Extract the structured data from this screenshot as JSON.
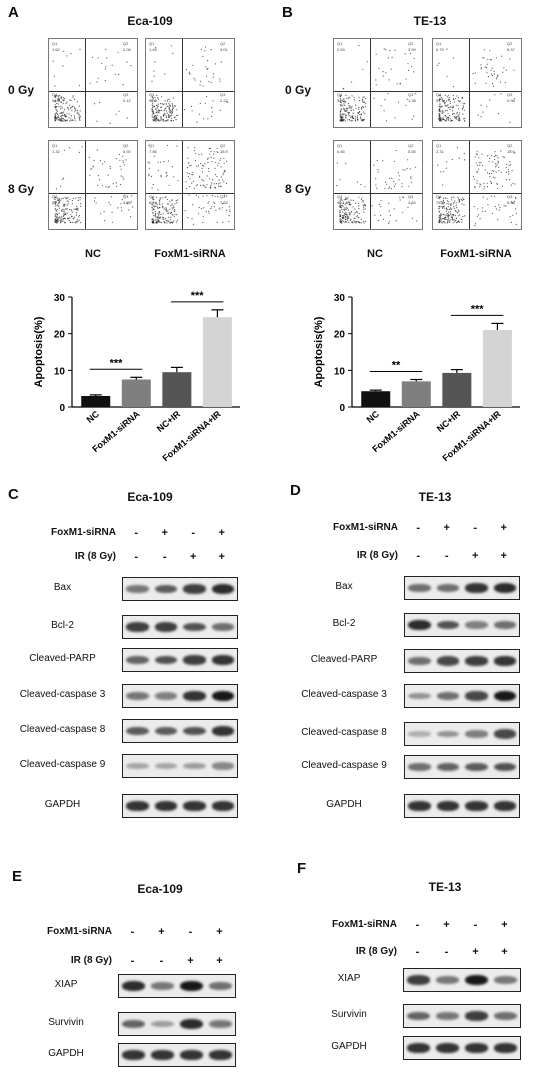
{
  "panels": [
    {
      "id": "A",
      "letter": "A",
      "title": "Eca-109",
      "row_labels": [
        "0 Gy",
        "8 Gy"
      ],
      "col_labels": [
        "NC",
        "FoxM1-siRNA"
      ],
      "flow": [
        {
          "q1": "1.62",
          "q2": "2.06",
          "q3": "0.12",
          "q4": "96.8"
        },
        {
          "q1": "1.48",
          "q2": "4.01",
          "q3": "2.22",
          "q4": "92.9"
        },
        {
          "q1": "1.32",
          "q2": "5.92",
          "q3": "3.55",
          "q4": "89.1"
        },
        {
          "q1": "7.86",
          "q2": "18.9",
          "q3": "7.63",
          "q4": "65.6"
        }
      ]
    },
    {
      "id": "B",
      "letter": "B",
      "title": "TE-13",
      "row_labels": [
        "0 Gy",
        "8 Gy"
      ],
      "col_labels": [
        "NC",
        "FoxM1-siRNA"
      ],
      "flow": [
        {
          "q1": "0.59",
          "q2": "3.59",
          "q3": "1.38",
          "q4": "94.3"
        },
        {
          "q1": "0.79",
          "q2": "6.37",
          "q3": "0.96",
          "q4": "91.9"
        },
        {
          "q1": "0.85",
          "q2": "5.55",
          "q3": "3.54",
          "q4": "90.1"
        },
        {
          "q1": "2.31",
          "q2": "15.6",
          "q3": "5.86",
          "q4": "76.2"
        }
      ]
    },
    {
      "id": "C",
      "letter": "C",
      "title": "Eca-109"
    },
    {
      "id": "D",
      "letter": "D",
      "title": "TE-13"
    },
    {
      "id": "E",
      "letter": "E",
      "title": "Eca-109"
    },
    {
      "id": "F",
      "letter": "F",
      "title": "TE-13"
    }
  ],
  "chart_data": [
    {
      "type": "bar",
      "categories": [
        "NC",
        "FoxM1-siRNA",
        "NC+IR",
        "FoxM1-siRNA+IR"
      ],
      "values": [
        3,
        7.5,
        9.5,
        24.5
      ],
      "errors": [
        0.3,
        0.6,
        1.3,
        2.0
      ],
      "colors": [
        "#111111",
        "#7f7f7f",
        "#555555",
        "#d4d4d4"
      ],
      "ylabel": "Apoptosis(%)",
      "ylim": [
        0,
        30
      ],
      "yticks": [
        0,
        10,
        20,
        30
      ],
      "significance": [
        {
          "from": 0,
          "to": 1,
          "label": "***"
        },
        {
          "from": 2,
          "to": 3,
          "label": "***"
        }
      ]
    },
    {
      "type": "bar",
      "categories": [
        "NC",
        "FoxM1-siRNA",
        "NC+IR",
        "FoxM1-siRNA+IR"
      ],
      "values": [
        4.3,
        7.0,
        9.3,
        21.0
      ],
      "errors": [
        0.3,
        0.5,
        0.9,
        1.8
      ],
      "colors": [
        "#111111",
        "#7f7f7f",
        "#555555",
        "#d4d4d4"
      ],
      "ylabel": "Apoptosis(%)",
      "ylim": [
        0,
        30
      ],
      "yticks": [
        0,
        10,
        20,
        30
      ],
      "significance": [
        {
          "from": 0,
          "to": 1,
          "label": "**"
        },
        {
          "from": 2,
          "to": 3,
          "label": "***"
        }
      ]
    }
  ],
  "western": {
    "headers": {
      "sirna": "FoxM1-siRNA",
      "ir": "IR (8 Gy)"
    },
    "sirna_signs": [
      "-",
      "+",
      "-",
      "+"
    ],
    "ir_signs": [
      "-",
      "-",
      "+",
      "+"
    ],
    "CD_proteins": [
      "Bax",
      "Bcl-2",
      "Cleaved-PARP",
      "Cleaved-caspase 3",
      "Cleaved-caspase 8",
      "Cleaved-caspase 9",
      "GAPDH"
    ],
    "EF_proteins": [
      "XIAP",
      "Survivin",
      "GAPDH"
    ],
    "C_intensity": [
      [
        0.45,
        0.6,
        0.75,
        0.85
      ],
      [
        0.75,
        0.75,
        0.65,
        0.5
      ],
      [
        0.55,
        0.65,
        0.75,
        0.8
      ],
      [
        0.45,
        0.4,
        0.8,
        0.95
      ],
      [
        0.6,
        0.6,
        0.65,
        0.8
      ],
      [
        0.2,
        0.2,
        0.25,
        0.35
      ],
      [
        0.8,
        0.8,
        0.8,
        0.8
      ]
    ],
    "D_intensity": [
      [
        0.5,
        0.5,
        0.8,
        0.85
      ],
      [
        0.85,
        0.65,
        0.4,
        0.5
      ],
      [
        0.5,
        0.7,
        0.75,
        0.8
      ],
      [
        0.3,
        0.5,
        0.7,
        0.95
      ],
      [
        0.15,
        0.3,
        0.4,
        0.7
      ],
      [
        0.5,
        0.55,
        0.6,
        0.65
      ],
      [
        0.8,
        0.8,
        0.8,
        0.8
      ]
    ],
    "E_intensity": [
      [
        0.85,
        0.45,
        0.95,
        0.5
      ],
      [
        0.55,
        0.25,
        0.85,
        0.45
      ],
      [
        0.8,
        0.8,
        0.8,
        0.8
      ]
    ],
    "F_intensity": [
      [
        0.75,
        0.45,
        0.95,
        0.45
      ],
      [
        0.55,
        0.45,
        0.75,
        0.5
      ],
      [
        0.8,
        0.8,
        0.8,
        0.8
      ]
    ]
  }
}
